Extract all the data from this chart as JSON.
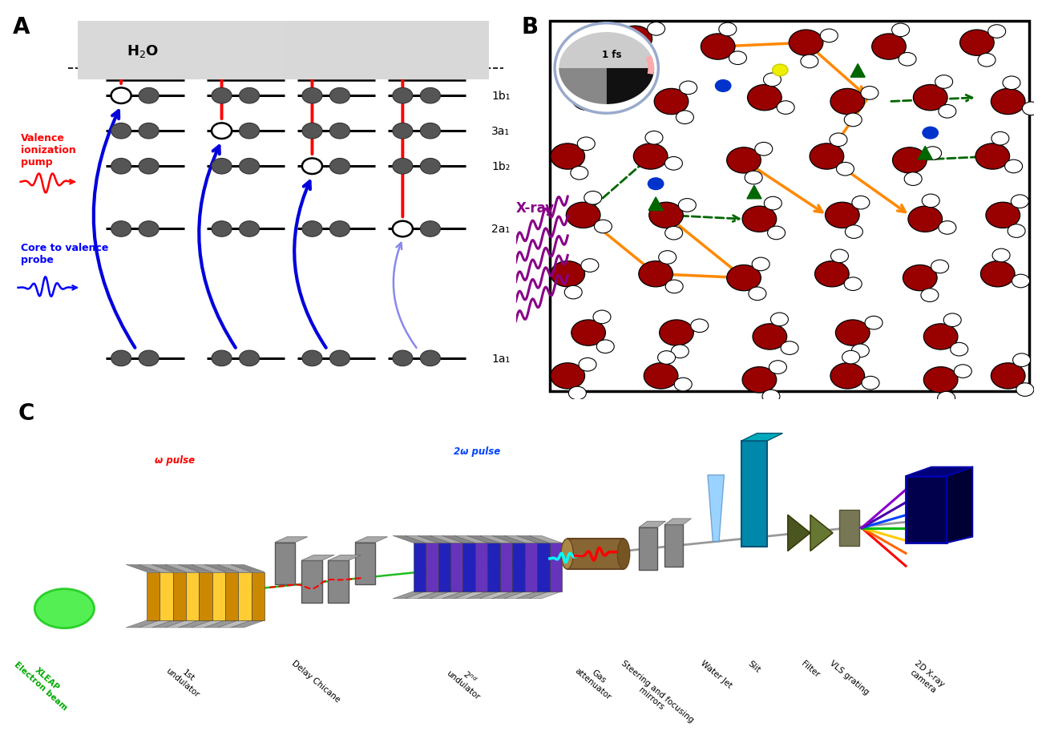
{
  "bg_color": "#ffffff",
  "panel_A": {
    "h2o_label": "H₂O",
    "orbital_labels": [
      "1b₁",
      "3a₁",
      "1b₂",
      "2a₁",
      "1a₁"
    ],
    "red_label": "Valence\nionization\npump",
    "blue_label": "Core to valence\nprobe"
  },
  "panel_B": {
    "xray_label": "X-ray",
    "clock_label": "1 fs"
  },
  "panel_C": {
    "xleap_label": "XLEAP\nElectron beam",
    "und1_label": "1st\nundulator",
    "chicane_label": "Delay Chicane",
    "und2_label": "2nd\nundulator",
    "omega_label": "ω pulse",
    "two_omega_label": "2ω pulse",
    "gas_label": "Gas\nattenuator",
    "mirrors_label": "Steering and focusing\nmirrors",
    "waterjet_label": "Water Jet",
    "slit_label": "Slit",
    "filter_label": "Filter",
    "vls_label": "VLS grating",
    "camera_label": "2D X-ray\ncamera"
  }
}
